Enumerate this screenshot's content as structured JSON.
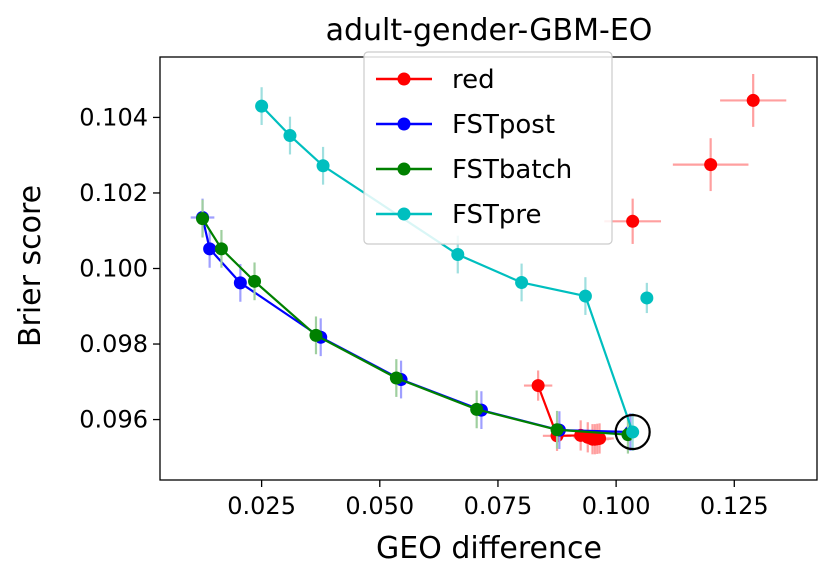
{
  "chart_data": {
    "type": "line",
    "title": "adult-gender-GBM-EO",
    "xlabel": "GEO difference",
    "ylabel": "Brier score",
    "xlim": [
      0.0035,
      0.1425
    ],
    "ylim": [
      0.0944,
      0.1056
    ],
    "xticks": [
      {
        "value": 0.025,
        "label": "0.025"
      },
      {
        "value": 0.05,
        "label": "0.050"
      },
      {
        "value": 0.075,
        "label": "0.075"
      },
      {
        "value": 0.1,
        "label": "0.100"
      },
      {
        "value": 0.125,
        "label": "0.125"
      }
    ],
    "yticks": [
      {
        "value": 0.096,
        "label": "0.096"
      },
      {
        "value": 0.098,
        "label": "0.098"
      },
      {
        "value": 0.1,
        "label": "0.100"
      },
      {
        "value": 0.102,
        "label": "0.102"
      },
      {
        "value": 0.104,
        "label": "0.104"
      }
    ],
    "grid": false,
    "legend_position": "top-center",
    "series": [
      {
        "name": "red",
        "color": "#ff0000",
        "error_color": "#ff9f9f",
        "connected": true,
        "x": [
          0.0835,
          0.0875,
          0.0925,
          0.094,
          0.095,
          0.0955,
          0.096,
          0.0965
        ],
        "y": [
          0.0969,
          0.09557,
          0.09558,
          0.09553,
          0.09548,
          0.09548,
          0.09549,
          0.0955
        ],
        "xerr": [
          0.003,
          0.003,
          0.003,
          0.003,
          0.003,
          0.003,
          0.003,
          0.003
        ],
        "yerr": [
          0.0004,
          0.0004,
          0.0004,
          0.0004,
          0.0004,
          0.0004,
          0.0004,
          0.0004
        ]
      },
      {
        "name": "red",
        "color": "#ff0000",
        "error_color": "#ff9f9f",
        "connected": false,
        "x": [
          0.1035,
          0.12,
          0.129
        ],
        "y": [
          0.10125,
          0.10275,
          0.10445
        ],
        "xerr": [
          0.006,
          0.008,
          0.007
        ],
        "yerr": [
          0.0006,
          0.0007,
          0.0007
        ]
      },
      {
        "name": "FSTpost",
        "color": "#0000ff",
        "error_color": "#9f9fff",
        "connected": true,
        "x": [
          0.0125,
          0.014,
          0.0205,
          0.0375,
          0.0545,
          0.0715,
          0.088,
          0.103
        ],
        "y": [
          0.10135,
          0.10052,
          0.09962,
          0.09818,
          0.09706,
          0.09625,
          0.09572,
          0.09567
        ],
        "xerr": [
          0.0025,
          0.0,
          0.0,
          0.0,
          0.0,
          0.0,
          0.0,
          0.0
        ],
        "yerr": [
          0.0005,
          0.0005,
          0.0005,
          0.0005,
          0.0005,
          0.0005,
          0.0005,
          0.0005
        ]
      },
      {
        "name": "FSTbatch",
        "color": "#008000",
        "error_color": "#9fcf9f",
        "connected": true,
        "x": [
          0.0125,
          0.0165,
          0.0235,
          0.0365,
          0.0535,
          0.0705,
          0.0875,
          0.1025
        ],
        "y": [
          0.10132,
          0.10052,
          0.09966,
          0.09823,
          0.0971,
          0.09627,
          0.09573,
          0.0956
        ],
        "xerr": [
          0.0,
          0.0,
          0.0,
          0.0,
          0.0,
          0.0,
          0.0,
          0.0
        ],
        "yerr": [
          0.0005,
          0.0005,
          0.0005,
          0.0005,
          0.0005,
          0.0005,
          0.0005,
          0.0005
        ]
      },
      {
        "name": "FSTpre",
        "color": "#00bfbf",
        "error_color": "#9fdfdf",
        "connected": true,
        "x": [
          0.025,
          0.031,
          0.038,
          0.0665,
          0.08,
          0.0935,
          0.1035
        ],
        "y": [
          0.1043,
          0.10352,
          0.10272,
          0.10037,
          0.09963,
          0.09927,
          0.09567
        ],
        "xerr": [
          0.0,
          0.0,
          0.0,
          0.0,
          0.0,
          0.0,
          0.0
        ],
        "yerr": [
          0.0005,
          0.0005,
          0.0005,
          0.0005,
          0.0005,
          0.0005,
          0.0005
        ]
      },
      {
        "name": "FSTpre",
        "color": "#00bfbf",
        "error_color": "#9fdfdf",
        "connected": false,
        "x": [
          0.1065
        ],
        "y": [
          0.09922
        ],
        "xerr": [
          0.0
        ],
        "yerr": [
          0.0004
        ]
      }
    ],
    "annotations": [
      {
        "type": "circle-marker",
        "x": 0.1035,
        "y": 0.09567,
        "color": "#000000"
      }
    ],
    "legend": [
      {
        "label": "red",
        "color": "#ff0000"
      },
      {
        "label": "FSTpost",
        "color": "#0000ff"
      },
      {
        "label": "FSTbatch",
        "color": "#008000"
      },
      {
        "label": "FSTpre",
        "color": "#00bfbf"
      }
    ]
  }
}
